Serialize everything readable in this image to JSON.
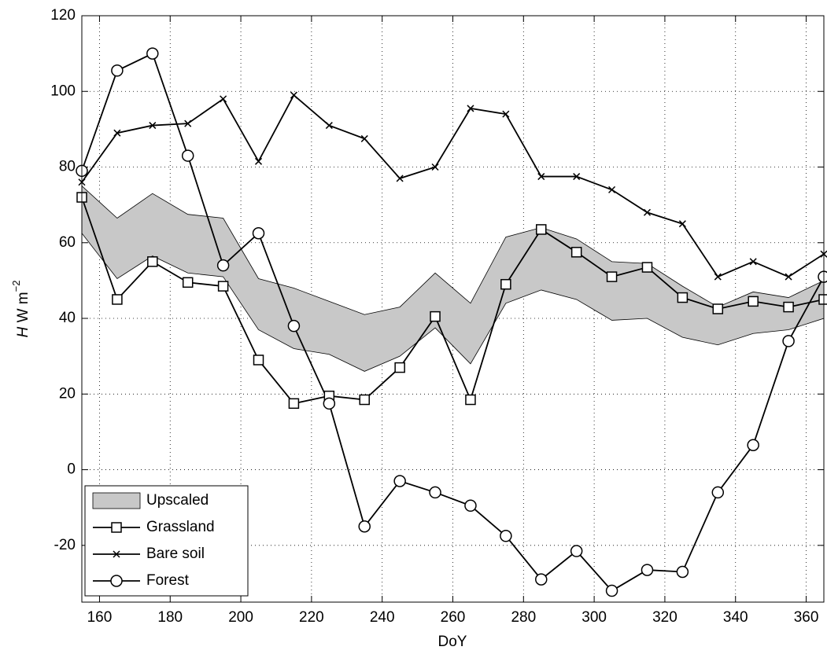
{
  "chart_data": {
    "type": "line",
    "x_label": "DoY",
    "y_label": {
      "symbol": "H",
      "unit": "W m",
      "exponent": "−2"
    },
    "x": [
      155,
      165,
      175,
      185,
      195,
      205,
      215,
      225,
      235,
      245,
      255,
      265,
      275,
      285,
      295,
      305,
      315,
      325,
      335,
      345,
      355,
      365
    ],
    "series": [
      {
        "name": "Upscaled",
        "kind": "band",
        "color": "#c8c8c8",
        "upper": [
          75,
          66.5,
          73,
          67.5,
          66.5,
          50.5,
          48,
          44.5,
          41,
          43,
          52,
          44,
          61.5,
          64,
          61,
          55,
          54.5,
          48.5,
          43,
          47,
          45.5,
          50
        ],
        "lower": [
          62.5,
          50.5,
          56.5,
          52,
          51,
          37,
          32,
          30.5,
          26,
          30,
          37.5,
          28,
          44,
          47.5,
          45,
          39.5,
          40,
          35,
          33,
          36,
          37,
          40
        ]
      },
      {
        "name": "Grassland",
        "marker": "square",
        "color": "#000000",
        "values": [
          72,
          45,
          55,
          49.5,
          48.5,
          29,
          17.5,
          19.5,
          18.5,
          27,
          40.5,
          18.5,
          49,
          63.5,
          57.5,
          51,
          53.5,
          45.5,
          42.5,
          44.5,
          43,
          45
        ]
      },
      {
        "name": "Bare soil",
        "marker": "x",
        "color": "#000000",
        "values": [
          76,
          89,
          91,
          91.5,
          98,
          81.5,
          99,
          91,
          87.5,
          77,
          80,
          95.5,
          94,
          77.5,
          77.5,
          74,
          68,
          65,
          51,
          55,
          51,
          57
        ]
      },
      {
        "name": "Forest",
        "marker": "circle",
        "color": "#000000",
        "values": [
          79,
          105.5,
          110,
          83,
          54,
          62.5,
          38,
          17.5,
          -15,
          -3,
          -6,
          -9.5,
          -17.5,
          -29,
          -21.5,
          -32,
          -26.5,
          -27,
          -6,
          6.5,
          34,
          51
        ]
      }
    ],
    "xlim": [
      155,
      365
    ],
    "xticks": [
      160,
      180,
      200,
      220,
      240,
      260,
      280,
      300,
      320,
      340,
      360
    ],
    "ylim": [
      -35,
      120
    ],
    "yticks": [
      -20,
      0,
      20,
      40,
      60,
      80,
      100,
      120
    ],
    "grid": true,
    "legend": "lower left"
  }
}
